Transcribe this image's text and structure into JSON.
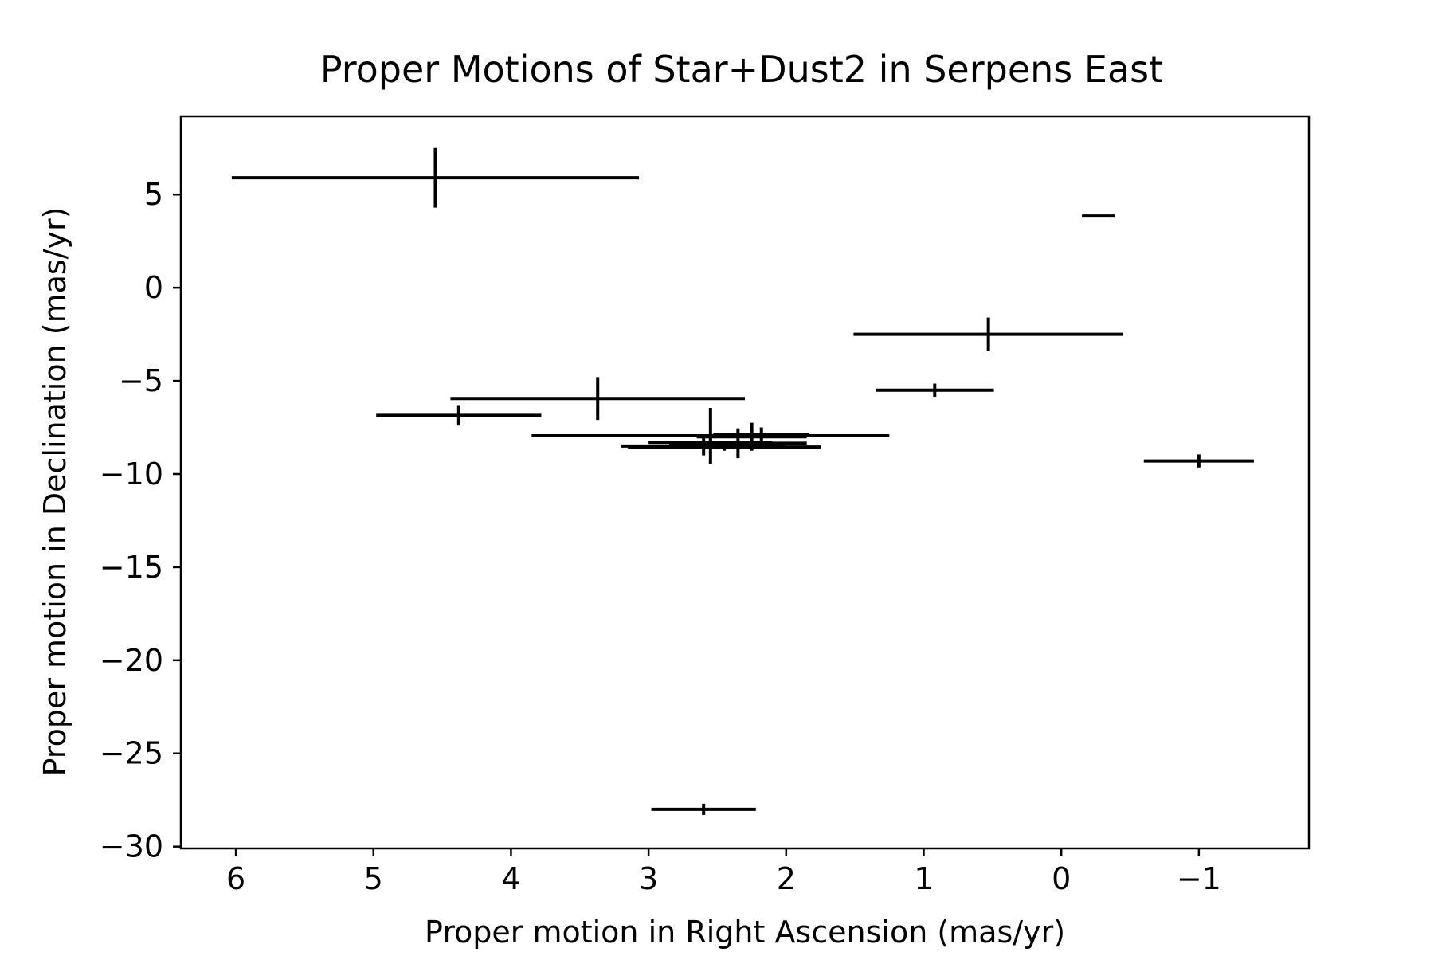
{
  "chart_data": {
    "type": "scatter",
    "title": "Proper Motions of Star+Dust2 in Serpens East",
    "xlabel": "Proper motion in Right Ascension (mas/yr)",
    "ylabel": "Proper motion in Declination (mas/yr)",
    "xlim": [
      6.4,
      -1.8
    ],
    "ylim": [
      -30.1,
      9.2
    ],
    "x_ticks": [
      6,
      5,
      4,
      3,
      2,
      1,
      0,
      -1
    ],
    "x_tick_labels": [
      "6",
      "5",
      "4",
      "3",
      "2",
      "1",
      "0",
      "−1"
    ],
    "y_ticks": [
      5,
      0,
      -5,
      -10,
      -15,
      -20,
      -25,
      -30
    ],
    "y_tick_labels": [
      "5",
      "0",
      "−5",
      "−10",
      "−15",
      "−20",
      "−25",
      "−30"
    ],
    "grid": false,
    "legend": false,
    "color": "#000000",
    "series": [
      {
        "points": [
          {
            "x": 4.55,
            "y": 5.9,
            "xerr": 1.48,
            "yerr": 1.6
          },
          {
            "x": -0.27,
            "y": 3.85,
            "xerr": 0.12,
            "yerr": 0.0
          },
          {
            "x": 0.53,
            "y": -2.5,
            "xerr": 0.98,
            "yerr": 0.9
          },
          {
            "x": 0.92,
            "y": -5.5,
            "xerr": 0.43,
            "yerr": 0.35
          },
          {
            "x": 3.37,
            "y": -5.95,
            "xerr": 1.07,
            "yerr": 1.15
          },
          {
            "x": 4.38,
            "y": -6.85,
            "xerr": 0.6,
            "yerr": 0.55
          },
          {
            "x": 2.55,
            "y": -7.95,
            "xerr": 1.3,
            "yerr": 1.5
          },
          {
            "x": 2.25,
            "y": -8.0,
            "xerr": 0.4,
            "yerr": 0.75
          },
          {
            "x": 2.35,
            "y": -8.35,
            "xerr": 0.5,
            "yerr": 0.8
          },
          {
            "x": 2.18,
            "y": -7.9,
            "xerr": 0.35,
            "yerr": 0.4
          },
          {
            "x": 2.45,
            "y": -8.55,
            "xerr": 0.7,
            "yerr": 0.2
          },
          {
            "x": 2.6,
            "y": -8.5,
            "xerr": 0.6,
            "yerr": 0.5
          },
          {
            "x": 2.55,
            "y": -8.3,
            "xerr": 0.45,
            "yerr": 0.2
          },
          {
            "x": -1.0,
            "y": -9.3,
            "xerr": 0.4,
            "yerr": 0.35
          },
          {
            "x": 2.6,
            "y": -28.0,
            "xerr": 0.38,
            "yerr": 0.3
          }
        ]
      }
    ]
  }
}
